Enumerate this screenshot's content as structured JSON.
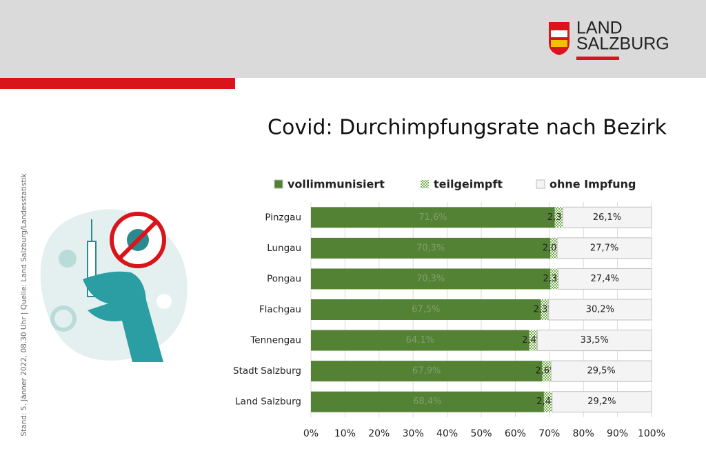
{
  "header": {
    "logo_line1": "LAND",
    "logo_line2": "SALZBURG"
  },
  "footnote": "Stand: 5. Jänner 2022, 08.30 Uhr | Quelle: Land Salzburg/Landesstatistik",
  "chart_data": {
    "type": "bar",
    "orientation": "horizontal",
    "stacked": true,
    "title": "Covid: Durchimpfungsrate nach Bezirk",
    "categories": [
      "Pinzgau",
      "Lungau",
      "Pongau",
      "Flachgau",
      "Tennengau",
      "Stadt Salzburg",
      "Land Salzburg"
    ],
    "series": [
      {
        "name": "vollimmunisiert",
        "color": "#548235",
        "values": [
          71.6,
          70.3,
          70.3,
          67.5,
          64.1,
          67.9,
          68.4
        ],
        "value_labels": [
          "71,6%",
          "70,3%",
          "70,3%",
          "67,5%",
          "64,1%",
          "67,9%",
          "68,4%"
        ]
      },
      {
        "name": "teilgeimpft",
        "color": "#a9d18e",
        "pattern": true,
        "values": [
          2.3,
          2.0,
          2.3,
          2.3,
          2.4,
          2.6,
          2.4
        ],
        "value_labels": [
          "2,3%",
          "2,0%",
          "2,3%",
          "2,3%",
          "2,4%",
          "2,6%",
          "2,4%"
        ]
      },
      {
        "name": "ohne Impfung",
        "color": "#f4f4f4",
        "values": [
          26.1,
          27.7,
          27.4,
          30.2,
          33.5,
          29.5,
          29.2
        ],
        "value_labels": [
          "26,1%",
          "27,7%",
          "27,4%",
          "30,2%",
          "33,5%",
          "29,5%",
          "29,2%"
        ]
      }
    ],
    "xlim": [
      0,
      100
    ],
    "xticks": [
      {
        "value": 0,
        "label": "0%"
      },
      {
        "value": 10,
        "label": "10%"
      },
      {
        "value": 20,
        "label": "20%"
      },
      {
        "value": 30,
        "label": "30%"
      },
      {
        "value": 40,
        "label": "40%"
      },
      {
        "value": 50,
        "label": "50%"
      },
      {
        "value": 60,
        "label": "60%"
      },
      {
        "value": 70,
        "label": "70%"
      },
      {
        "value": 80,
        "label": "80%"
      },
      {
        "value": 90,
        "label": "90%"
      },
      {
        "value": 100,
        "label": "100%"
      }
    ],
    "legend": "top"
  }
}
